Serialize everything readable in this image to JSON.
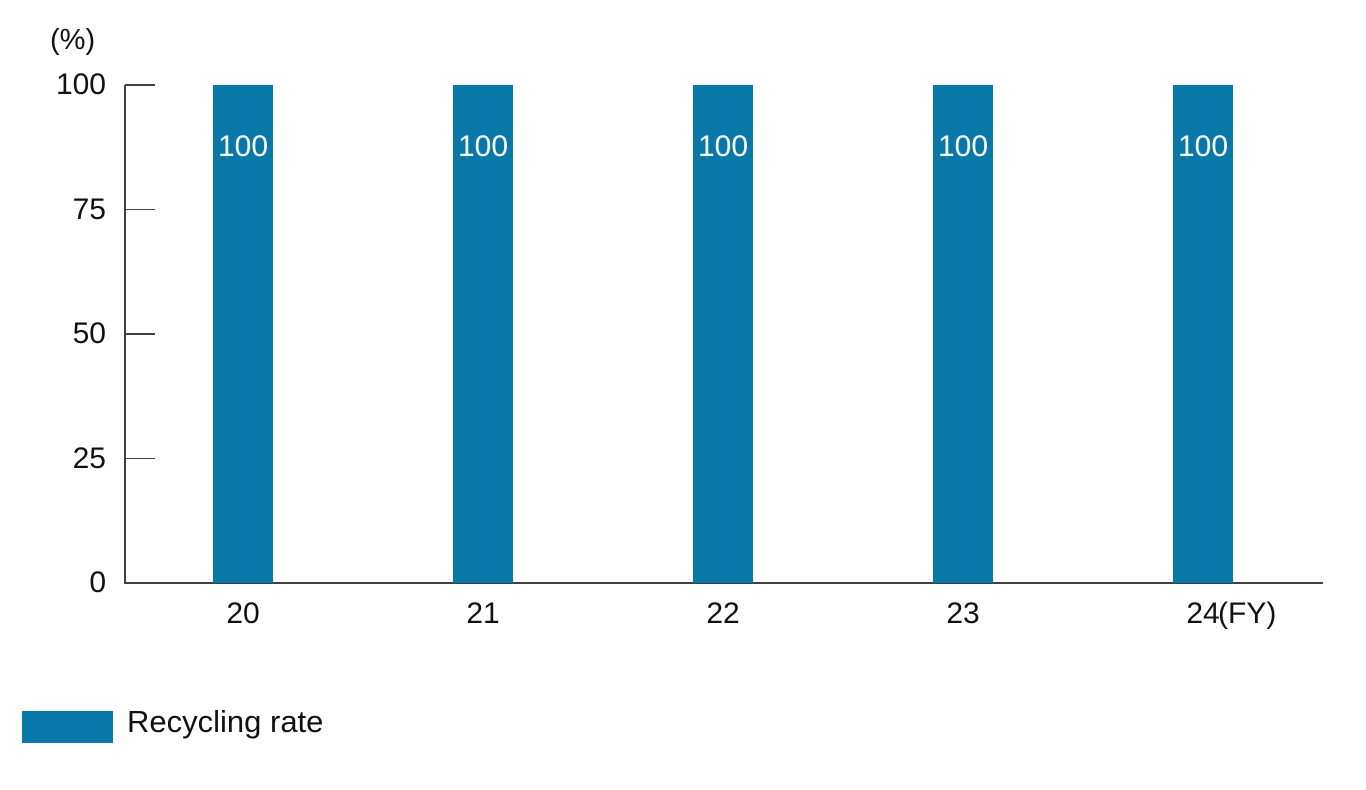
{
  "chart_data": {
    "type": "bar",
    "title": "",
    "ylabel": "(%)",
    "xlabel": "",
    "x_unit_label": "(FY)",
    "categories": [
      "20",
      "21",
      "22",
      "23",
      "24"
    ],
    "values": [
      100,
      100,
      100,
      100,
      100
    ],
    "ylim": [
      0,
      100
    ],
    "yticks": [
      0,
      25,
      50,
      75,
      100
    ],
    "grid": false,
    "legend": {
      "position": "bottom-left",
      "items": [
        {
          "label": "Recycling rate",
          "color": "#0778a8"
        }
      ]
    },
    "colors": {
      "bar": "#0778a8",
      "bar_value_text": "#ffffff",
      "axis": "#404040",
      "text": "#111111",
      "background": "#ffffff"
    }
  }
}
